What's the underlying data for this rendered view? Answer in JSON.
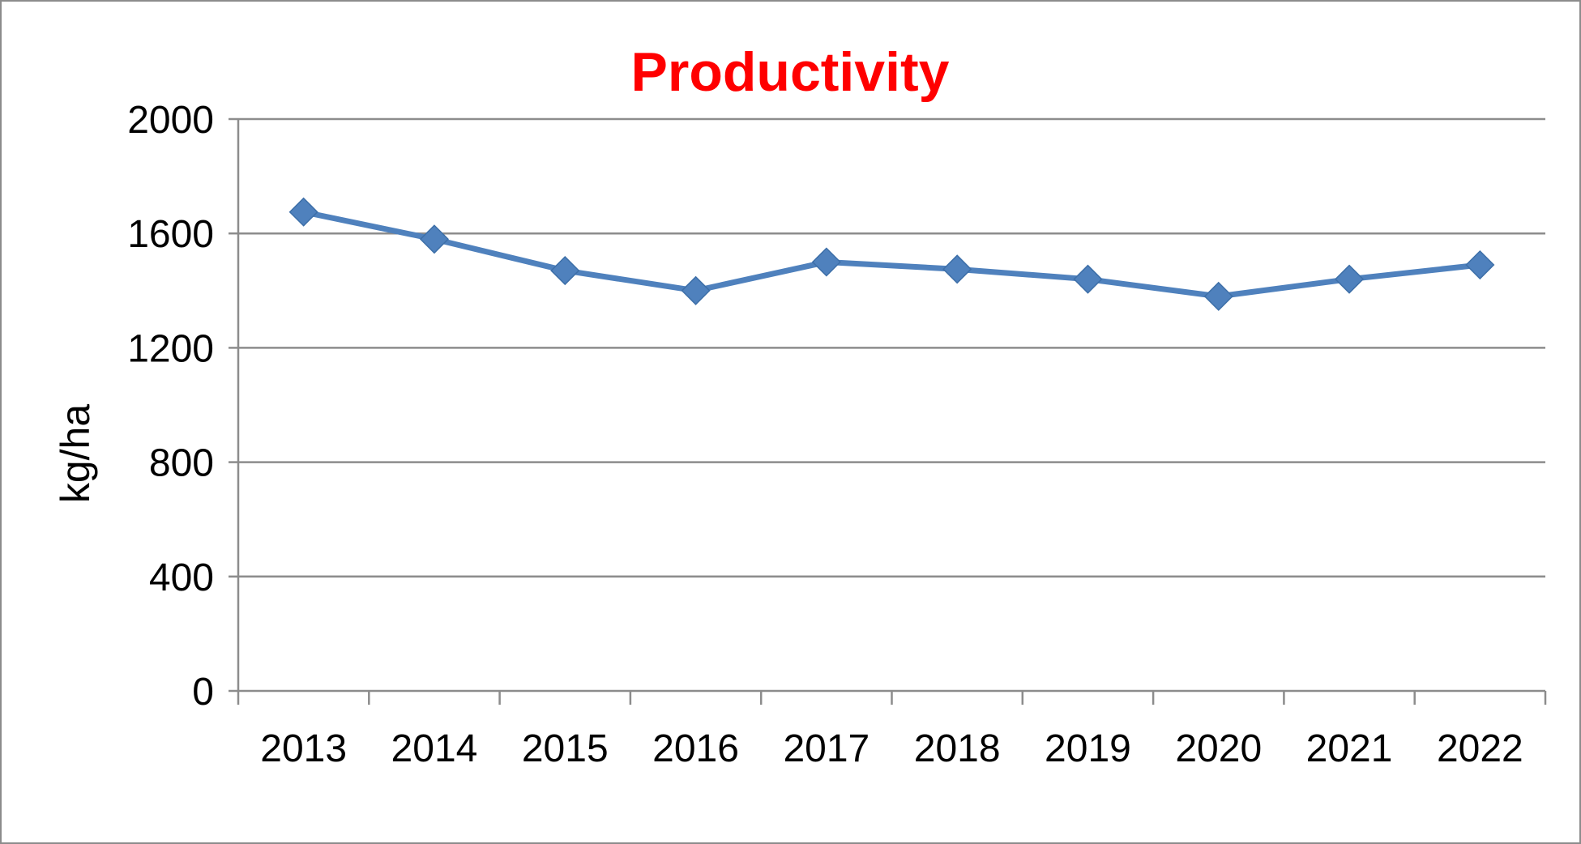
{
  "chart_data": {
    "type": "line",
    "title": "Productivity",
    "xlabel": "",
    "ylabel": "kg/ha",
    "categories": [
      "2013",
      "2014",
      "2015",
      "2016",
      "2017",
      "2018",
      "2019",
      "2020",
      "2021",
      "2022"
    ],
    "series": [
      {
        "values": [
          1675,
          1580,
          1470,
          1400,
          1500,
          1475,
          1440,
          1380,
          1440,
          1490
        ]
      }
    ],
    "ylim": [
      0,
      2000
    ],
    "yticks": [
      0,
      400,
      800,
      1200,
      1600,
      2000
    ],
    "grid": true,
    "legend": "none",
    "marker": "diamond"
  },
  "colors": {
    "title": "#ff0000",
    "series": "#4f81bd",
    "gridline": "#8c8c8c",
    "axis": "#8c8c8c",
    "text": "#000000"
  }
}
